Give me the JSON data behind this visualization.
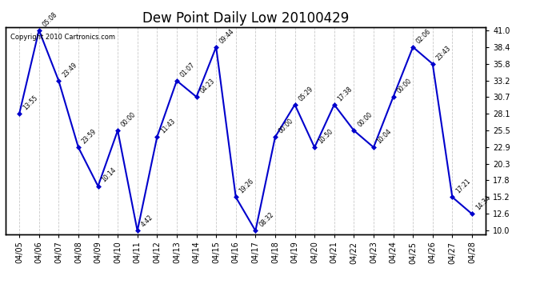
{
  "title": "Dew Point Daily Low 20100429",
  "copyright_text": "Copyright 2010 Cartronics.com",
  "x_labels": [
    "04/05",
    "04/06",
    "04/07",
    "04/08",
    "04/09",
    "04/10",
    "04/11",
    "04/12",
    "04/13",
    "04/14",
    "04/15",
    "04/16",
    "04/17",
    "04/18",
    "04/19",
    "04/20",
    "04/21",
    "04/22",
    "04/23",
    "04/24",
    "04/25",
    "04/26",
    "04/27",
    "04/28"
  ],
  "y_vals": [
    28.1,
    41.0,
    33.2,
    22.9,
    16.9,
    25.5,
    10.0,
    24.5,
    33.2,
    30.7,
    38.4,
    15.2,
    10.0,
    24.5,
    29.5,
    22.9,
    29.5,
    25.5,
    22.9,
    30.7,
    38.4,
    35.8,
    15.2,
    12.6
  ],
  "point_labels": [
    "13:55",
    "05:08",
    "23:49",
    "23:59",
    "10:14",
    "00:00",
    "4:42",
    "11:43",
    "01:07",
    "04:23",
    "09:44",
    "19:26",
    "08:32",
    "00:00",
    "05:29",
    "10:50",
    "17:38",
    "00:00",
    "10:04",
    "00:00",
    "02:06",
    "23:43",
    "17:21",
    "14:34"
  ],
  "yticks": [
    10.0,
    12.6,
    15.2,
    17.8,
    20.3,
    22.9,
    25.5,
    28.1,
    30.7,
    33.2,
    35.8,
    38.4,
    41.0
  ],
  "ylim_min": 9.5,
  "ylim_max": 41.5,
  "line_color": "#0000CC",
  "bg_color": "#ffffff",
  "grid_color": "#bbbbbb",
  "title_fontsize": 12,
  "annotation_fontsize": 5.5,
  "tick_fontsize": 7,
  "copyright_fontsize": 6
}
